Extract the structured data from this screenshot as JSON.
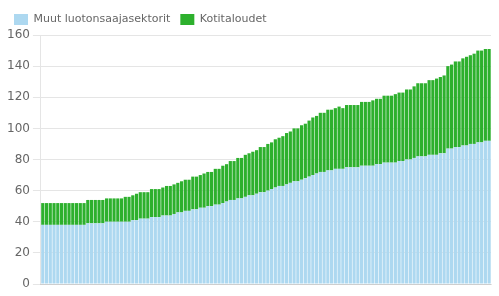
{
  "chart_data": {
    "type": "bar",
    "stacked": true,
    "grid": true,
    "legend": "upper left",
    "tick_labels": "y",
    "categories": [
      null,
      null,
      null,
      null,
      null,
      null,
      null,
      null,
      null,
      null,
      null,
      null,
      null,
      null,
      null,
      null,
      null,
      null,
      null,
      null,
      null,
      null,
      null,
      null,
      null,
      null,
      null,
      null,
      null,
      null,
      null,
      null,
      null,
      null,
      null,
      null,
      null,
      null,
      null,
      null,
      null,
      null,
      null,
      null,
      null,
      null,
      null,
      null,
      null,
      null,
      null,
      null,
      null,
      null,
      null,
      null,
      null,
      null,
      null,
      null,
      null,
      null,
      null,
      null,
      null,
      null,
      null,
      null,
      null,
      null,
      null,
      null,
      null,
      null,
      null,
      null,
      null,
      null,
      null,
      null,
      null,
      null,
      null,
      null,
      null,
      null,
      null,
      null,
      null,
      null,
      null,
      null,
      null,
      null,
      null,
      null,
      null,
      null,
      null,
      null,
      null,
      null,
      null,
      null,
      null,
      null,
      null,
      null,
      null,
      null,
      null,
      null,
      null,
      null,
      null,
      null,
      null,
      null,
      null,
      null
    ],
    "series": [
      {
        "name": "Muut luotonsaajasektorit",
        "color": "#add8f0",
        "values": [
          38,
          38,
          38,
          38,
          38,
          38,
          38,
          38,
          38,
          38,
          38,
          38,
          39,
          39,
          39,
          39,
          39,
          40,
          40,
          40,
          40,
          40,
          40,
          40,
          41,
          41,
          42,
          42,
          42,
          43,
          43,
          43,
          44,
          44,
          44,
          45,
          46,
          46,
          47,
          47,
          48,
          48,
          49,
          49,
          50,
          50,
          51,
          51,
          52,
          53,
          54,
          54,
          55,
          55,
          56,
          57,
          57,
          58,
          59,
          59,
          60,
          61,
          62,
          63,
          63,
          64,
          65,
          66,
          66,
          67,
          68,
          69,
          70,
          71,
          72,
          72,
          73,
          73,
          74,
          74,
          74,
          75,
          75,
          75,
          75,
          76,
          76,
          76,
          76,
          77,
          77,
          78,
          78,
          78,
          78,
          79,
          79,
          80,
          80,
          81,
          82,
          82,
          82,
          83,
          83,
          83,
          84,
          84,
          87,
          87,
          88,
          88,
          89,
          89,
          90,
          90,
          91,
          91,
          92,
          92
        ]
      },
      {
        "name": "Kotitaloudet",
        "color": "#2db02d",
        "values": [
          14,
          14,
          14,
          14,
          14,
          14,
          14,
          14,
          14,
          14,
          14,
          14,
          15,
          15,
          15,
          15,
          15,
          15,
          15,
          15,
          15,
          15,
          16,
          16,
          16,
          17,
          17,
          17,
          17,
          18,
          18,
          18,
          18,
          19,
          19,
          19,
          19,
          20,
          20,
          20,
          21,
          21,
          21,
          22,
          22,
          22,
          23,
          23,
          24,
          24,
          25,
          25,
          26,
          26,
          27,
          27,
          28,
          28,
          29,
          29,
          30,
          30,
          31,
          31,
          32,
          33,
          33,
          34,
          34,
          35,
          35,
          36,
          37,
          37,
          38,
          38,
          39,
          39,
          39,
          40,
          39,
          40,
          40,
          40,
          40,
          41,
          41,
          41,
          42,
          42,
          42,
          43,
          43,
          43,
          44,
          44,
          44,
          45,
          45,
          46,
          47,
          47,
          47,
          48,
          48,
          49,
          49,
          50,
          53,
          54,
          55,
          55,
          56,
          57,
          57,
          58,
          59,
          59,
          59,
          59
        ]
      }
    ],
    "ylim": [
      0,
      160
    ],
    "yticks": [
      0,
      20,
      40,
      60,
      80,
      100,
      120,
      140,
      160
    ]
  }
}
